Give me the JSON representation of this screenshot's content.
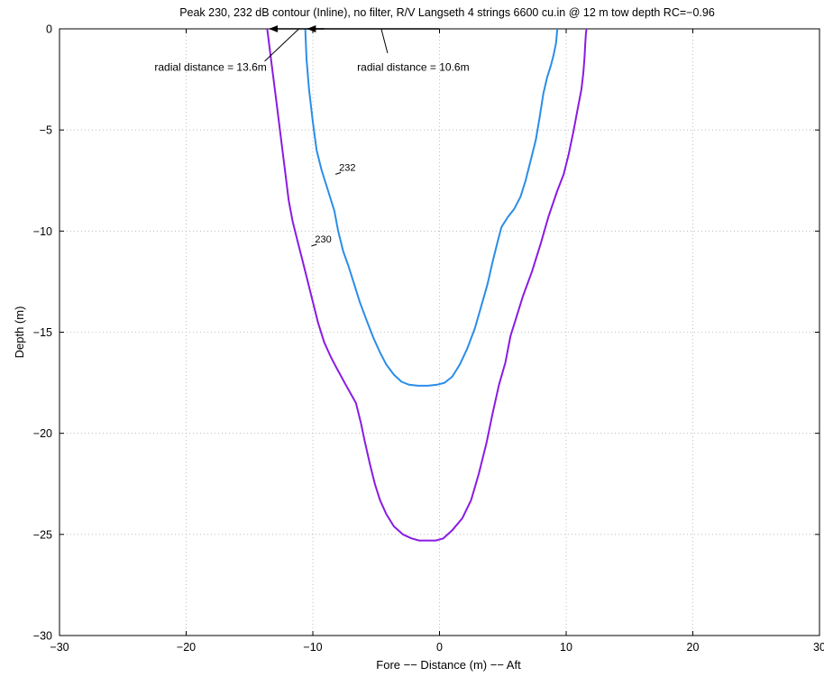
{
  "chart_data": {
    "type": "line",
    "title": "Peak 230, 232 dB contour (Inline), no filter, R/V Langseth 4 strings 6600 cu.in  @ 12 m  tow depth RC=−0.96",
    "xlabel": "Fore −− Distance (m) −− Aft",
    "ylabel": "Depth (m)",
    "xlim": [
      -30,
      30
    ],
    "ylim": [
      -30,
      0
    ],
    "xticks": [
      -30,
      -20,
      -10,
      0,
      10,
      20,
      30
    ],
    "yticks": [
      0,
      -5,
      -10,
      -15,
      -20,
      -25,
      -30
    ],
    "xtick_labels": [
      "−30",
      "−20",
      "−10",
      "0",
      "10",
      "20",
      "30"
    ],
    "ytick_labels": [
      "0",
      "−5",
      "−10",
      "−15",
      "−20",
      "−25",
      "−30"
    ],
    "grid": true,
    "series": [
      {
        "name": "230",
        "color": "#8a1be2",
        "x": [
          -13.6,
          -13.3,
          -12.9,
          -12.5,
          -12.2,
          -11.9,
          -11.6,
          -11.2,
          -10.8,
          -10.4,
          -10.0,
          -9.6,
          -9.1,
          -8.6,
          -8.1,
          -7.4,
          -6.6,
          -6.2,
          -5.9,
          -5.5,
          -5.1,
          -4.7,
          -4.2,
          -3.6,
          -2.9,
          -2.2,
          -1.6,
          -0.9,
          -0.3,
          0.3,
          1.0,
          1.8,
          2.5,
          3.1,
          3.7,
          4.2,
          4.7,
          5.2,
          5.6,
          6.1,
          6.6,
          7.3,
          8.0,
          8.6,
          9.3,
          9.8,
          10.2,
          10.6,
          10.9,
          11.2,
          11.35,
          11.45,
          11.5,
          11.55,
          11.6
        ],
        "y": [
          0,
          -1.5,
          -3.5,
          -5.5,
          -7.0,
          -8.5,
          -9.5,
          -10.5,
          -11.5,
          -12.5,
          -13.5,
          -14.5,
          -15.5,
          -16.2,
          -16.8,
          -17.6,
          -18.5,
          -19.5,
          -20.4,
          -21.5,
          -22.5,
          -23.3,
          -24.0,
          -24.6,
          -25.0,
          -25.2,
          -25.3,
          -25.3,
          -25.3,
          -25.2,
          -24.8,
          -24.2,
          -23.3,
          -22.0,
          -20.5,
          -19.0,
          -17.6,
          -16.5,
          -15.2,
          -14.2,
          -13.2,
          -12.0,
          -10.6,
          -9.3,
          -8.0,
          -7.2,
          -6.2,
          -5.0,
          -4.0,
          -3.0,
          -2.2,
          -1.4,
          -0.8,
          -0.3,
          0
        ]
      },
      {
        "name": "232",
        "color": "#2a8de8",
        "x": [
          -10.6,
          -10.5,
          -10.3,
          -10.0,
          -9.7,
          -9.3,
          -8.8,
          -8.3,
          -8.0,
          -7.6,
          -7.2,
          -6.8,
          -6.3,
          -5.7,
          -5.2,
          -4.7,
          -4.2,
          -3.6,
          -3.0,
          -2.4,
          -1.7,
          -0.9,
          -0.2,
          0.4,
          1.0,
          1.6,
          2.2,
          2.8,
          3.3,
          3.8,
          4.2,
          4.6,
          4.9,
          5.4,
          5.9,
          6.4,
          6.8,
          7.2,
          7.6,
          7.9,
          8.2,
          8.5,
          8.8,
          9.0,
          9.2,
          9.3
        ],
        "y": [
          0,
          -1.5,
          -3.0,
          -4.6,
          -6.0,
          -7.0,
          -8.0,
          -9.0,
          -10.0,
          -11.0,
          -11.7,
          -12.5,
          -13.5,
          -14.5,
          -15.3,
          -16.0,
          -16.6,
          -17.1,
          -17.45,
          -17.6,
          -17.65,
          -17.65,
          -17.6,
          -17.5,
          -17.2,
          -16.6,
          -15.8,
          -14.8,
          -13.7,
          -12.6,
          -11.5,
          -10.5,
          -9.8,
          -9.3,
          -8.9,
          -8.3,
          -7.5,
          -6.5,
          -5.5,
          -4.4,
          -3.2,
          -2.4,
          -1.8,
          -1.3,
          -0.7,
          0
        ]
      }
    ],
    "contour_labels": [
      {
        "text": "232",
        "x": -8.0,
        "y": -7.15
      },
      {
        "text": "230",
        "x": -9.9,
        "y": -10.7
      }
    ],
    "annotations": [
      {
        "text": "radial distance = 13.6m",
        "text_x": -22.5,
        "text_y": -1.9,
        "arrow_from": [
          -9.1,
          0
        ],
        "arrow_to": [
          -13.4,
          0
        ],
        "leader_from": [
          -13.8,
          -1.6
        ],
        "leader_to": [
          -11.1,
          0
        ]
      },
      {
        "text": "radial distance = 10.6m",
        "text_x": -6.5,
        "text_y": -1.9,
        "arrow_from": [
          0,
          0
        ],
        "arrow_to": [
          -10.4,
          0
        ],
        "leader_from": [
          -4.1,
          -1.2
        ],
        "leader_to": [
          -4.6,
          0
        ]
      }
    ]
  }
}
